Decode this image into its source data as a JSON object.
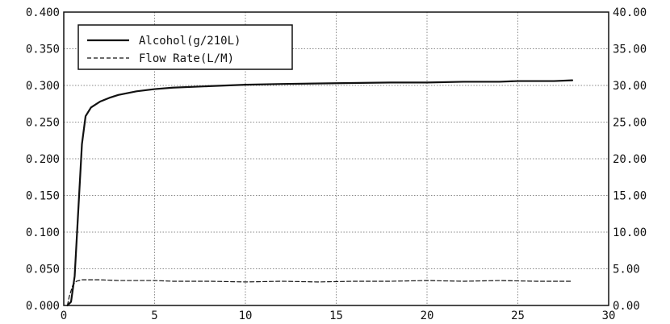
{
  "chart_data": {
    "type": "line",
    "xlim": [
      0,
      30
    ],
    "ylim_left": [
      0,
      0.4
    ],
    "ylim_right": [
      0,
      40
    ],
    "x_ticks": [
      "0",
      "5",
      "10",
      "15",
      "20",
      "25",
      "30"
    ],
    "y_left_ticks": [
      "0.000",
      "0.050",
      "0.100",
      "0.150",
      "0.200",
      "0.250",
      "0.300",
      "0.350",
      "0.400"
    ],
    "y_right_ticks": [
      "0.00",
      "5.00",
      "10.00",
      "15.00",
      "20.00",
      "25.00",
      "30.00",
      "35.00",
      "40.00"
    ],
    "grid": true,
    "legend_position": "top-left",
    "series": [
      {
        "name": "Alcohol(g/210L)",
        "axis": "left",
        "style": "solid",
        "color": "#111111",
        "x": [
          0.2,
          0.4,
          0.6,
          0.8,
          1.0,
          1.2,
          1.5,
          2,
          2.5,
          3,
          4,
          5,
          6,
          8,
          10,
          12,
          15,
          18,
          20,
          22,
          24,
          25,
          26,
          27,
          28
        ],
        "y": [
          0.0,
          0.005,
          0.04,
          0.13,
          0.22,
          0.258,
          0.27,
          0.278,
          0.283,
          0.287,
          0.292,
          0.295,
          0.297,
          0.299,
          0.301,
          0.302,
          0.303,
          0.304,
          0.304,
          0.305,
          0.305,
          0.306,
          0.306,
          0.306,
          0.307
        ]
      },
      {
        "name": "Flow Rate(L/M)",
        "axis": "right",
        "style": "dashed",
        "color": "#111111",
        "x": [
          0.2,
          0.3,
          0.5,
          0.7,
          1,
          2,
          3,
          4,
          5,
          6,
          8,
          10,
          12,
          14,
          16,
          18,
          20,
          22,
          24,
          26,
          28
        ],
        "y": [
          0.0,
          1.2,
          2.8,
          3.3,
          3.5,
          3.5,
          3.4,
          3.4,
          3.4,
          3.3,
          3.3,
          3.2,
          3.3,
          3.2,
          3.3,
          3.3,
          3.4,
          3.3,
          3.4,
          3.3,
          3.3
        ]
      }
    ]
  }
}
